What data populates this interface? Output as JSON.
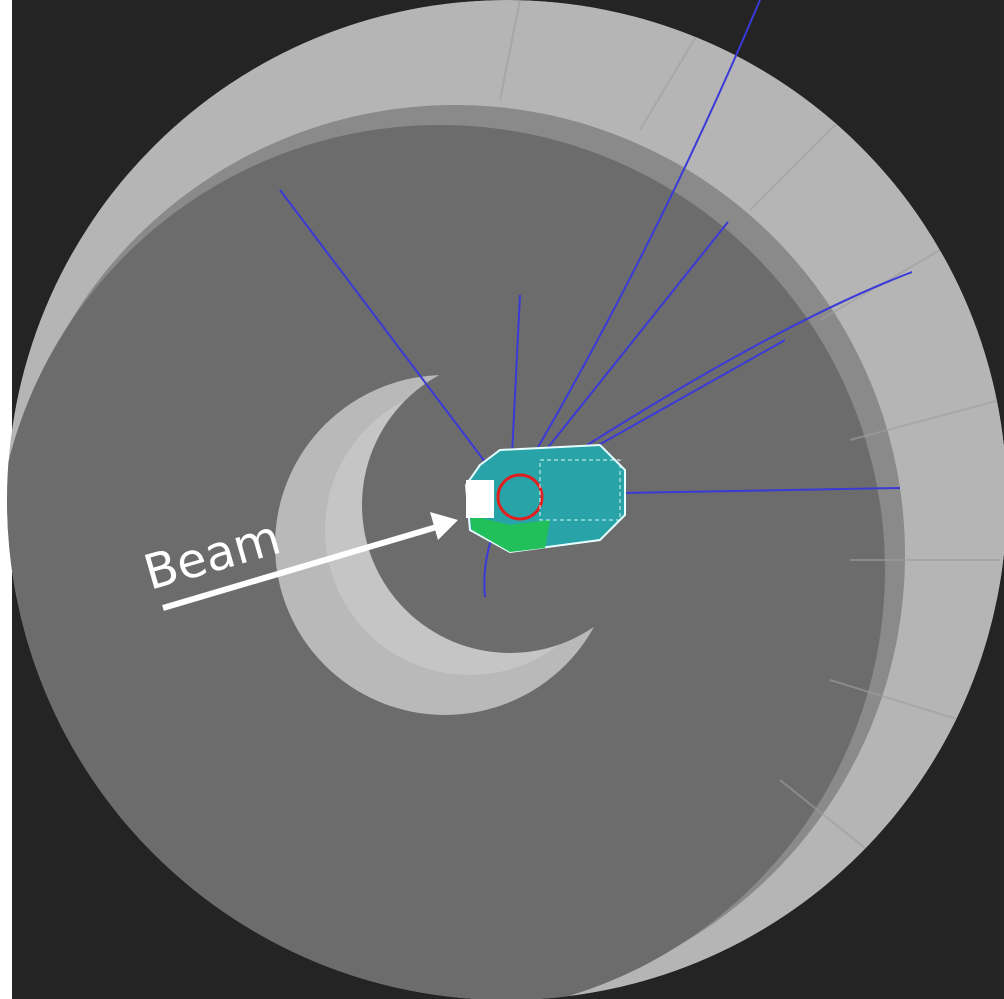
{
  "annotation": {
    "label": "Beam"
  }
}
